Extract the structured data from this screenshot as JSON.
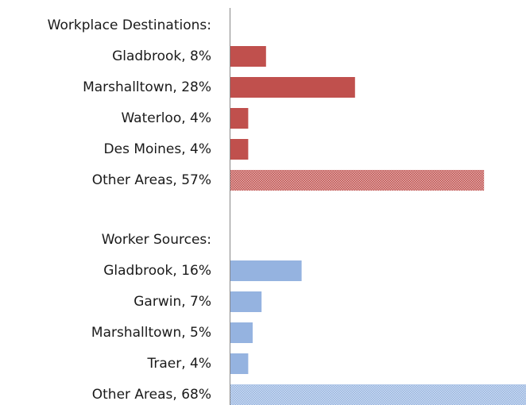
{
  "chart_data": {
    "type": "bar",
    "orientation": "horizontal",
    "groups": [
      {
        "heading": "Workplace Destinations:",
        "color": "#c0504d",
        "categories": [
          "Gladbrook, 8%",
          "Marshalltown, 28%",
          "Waterloo, 4%",
          "Des Moines, 4%",
          "Other Areas, 57%"
        ],
        "values": [
          8,
          28,
          4,
          4,
          57
        ],
        "hatched": [
          false,
          false,
          false,
          false,
          true
        ]
      },
      {
        "heading": "Worker Sources:",
        "color": "#95b3e0",
        "categories": [
          "Gladbrook, 16%",
          "Garwin, 7%",
          "Marshalltown, 5%",
          "Traer, 4%",
          "Other Areas, 68%"
        ],
        "values": [
          16,
          7,
          5,
          4,
          68
        ],
        "hatched": [
          false,
          false,
          false,
          false,
          true
        ]
      }
    ]
  }
}
